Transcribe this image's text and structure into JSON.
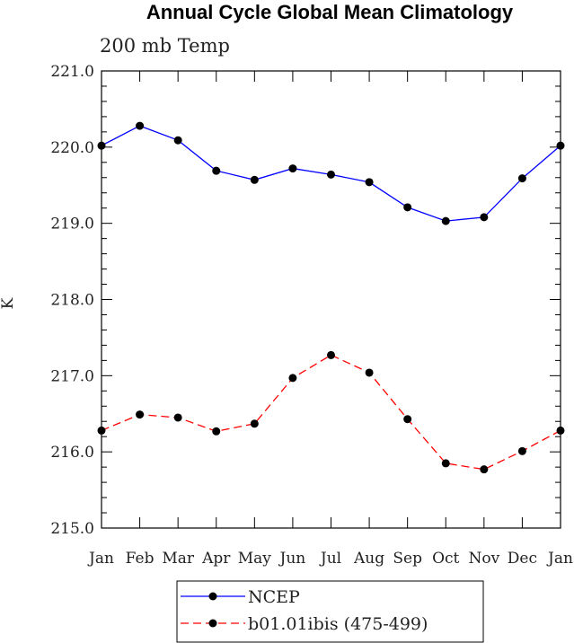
{
  "chart_data": {
    "type": "line",
    "title": "Annual Cycle Global Mean Climatology",
    "subtitle": "200 mb Temp",
    "ylabel": "K",
    "xlabel": "",
    "categories": [
      "Jan",
      "Feb",
      "Mar",
      "Apr",
      "May",
      "Jun",
      "Jul",
      "Aug",
      "Sep",
      "Oct",
      "Nov",
      "Dec",
      "Jan"
    ],
    "ylim": [
      215.0,
      221.0
    ],
    "yticks": [
      "215.0",
      "216.0",
      "217.0",
      "218.0",
      "219.0",
      "220.0",
      "221.0"
    ],
    "grid": false,
    "legend_position": "bottom-center",
    "series": [
      {
        "name": "NCEP",
        "color": "#0000ff",
        "line_style": "solid",
        "marker": "filled-circle",
        "values": [
          220.02,
          220.28,
          220.09,
          219.69,
          219.57,
          219.72,
          219.64,
          219.54,
          219.21,
          219.03,
          219.08,
          219.59,
          220.02
        ]
      },
      {
        "name": "b01.01ibis (475-499)",
        "color": "#ff0000",
        "line_style": "dashed",
        "marker": "filled-circle",
        "values": [
          216.28,
          216.49,
          216.45,
          216.27,
          216.37,
          216.97,
          217.27,
          217.04,
          216.43,
          215.85,
          215.77,
          216.01,
          216.28
        ]
      }
    ]
  }
}
